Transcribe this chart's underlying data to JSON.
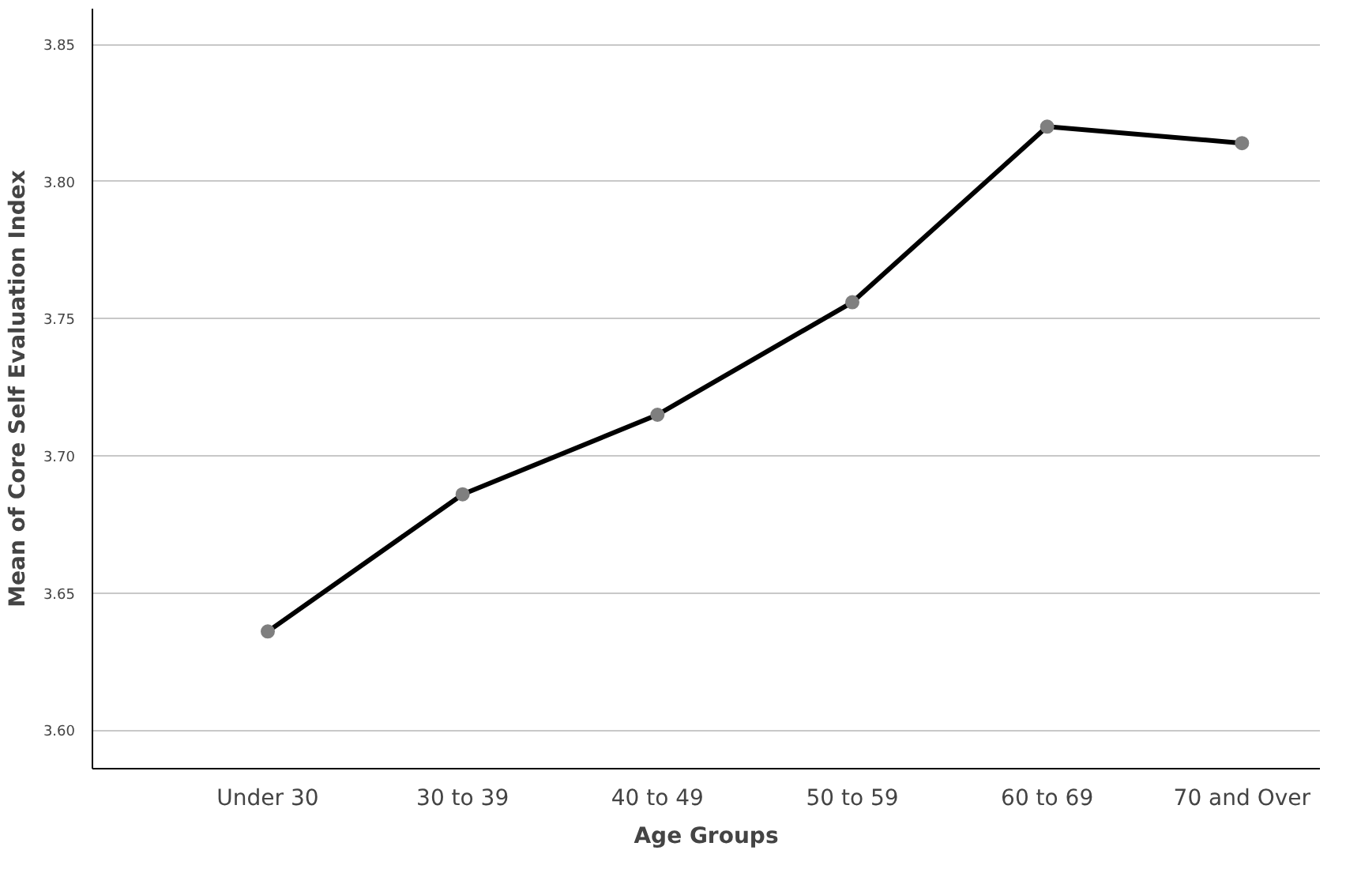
{
  "chart_data": {
    "type": "line",
    "xlabel": "Age Groups",
    "ylabel": "Mean of Core Self Evaluation Index",
    "categories": [
      "Under 30",
      "30 to 39",
      "40 to 49",
      "50 to 59",
      "60 to 69",
      "70 and Over"
    ],
    "series": [
      {
        "color": "#000000",
        "values": [
          3.636,
          3.686,
          3.715,
          3.756,
          3.82,
          3.814
        ]
      }
    ],
    "ylim": [
      3.586,
      3.863
    ],
    "yticks": [
      {
        "value": 3.6,
        "label": "3.60"
      },
      {
        "value": 3.65,
        "label": "3.65"
      },
      {
        "value": 3.7,
        "label": "3.70"
      },
      {
        "value": 3.75,
        "label": "3.75"
      },
      {
        "value": 3.8,
        "label": "3.80"
      },
      {
        "value": 3.85,
        "label": "3.85"
      }
    ],
    "grid": "y",
    "marker": "circle",
    "line_style": "solid"
  }
}
